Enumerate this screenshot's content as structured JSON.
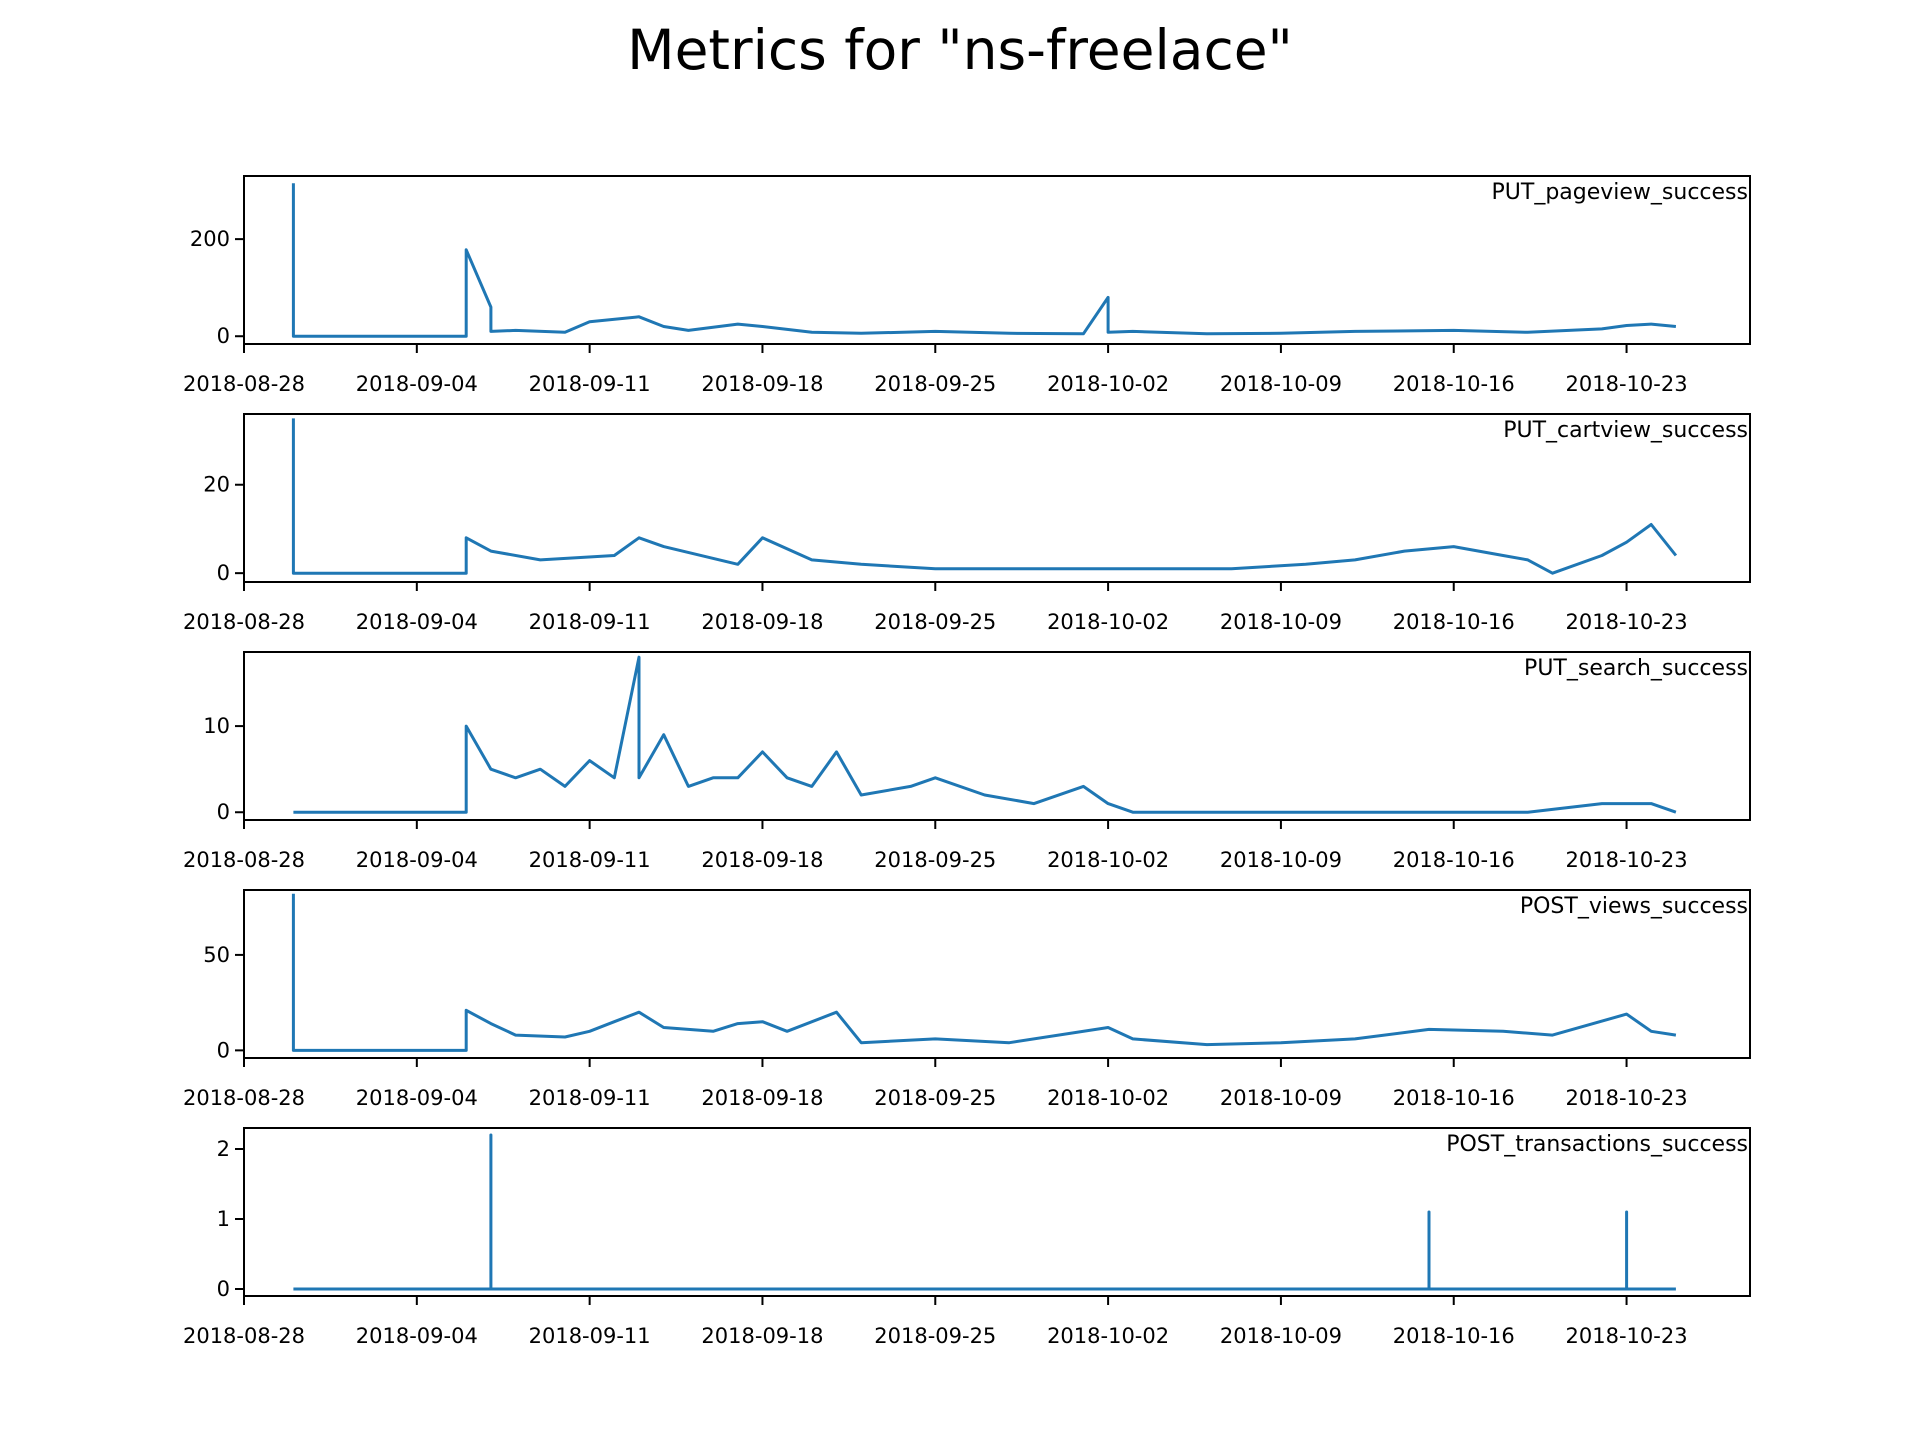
{
  "figure": {
    "title": "Metrics for \"ns-freelace\"",
    "line_color": "#1f77b4"
  },
  "chart_data": [
    {
      "type": "line",
      "title": "PUT_pageview_success",
      "xlabel": "",
      "ylabel": "",
      "x_ticks": [
        "2018-08-28",
        "2018-09-04",
        "2018-09-11",
        "2018-09-18",
        "2018-09-25",
        "2018-10-02",
        "2018-10-09",
        "2018-10-16",
        "2018-10-23"
      ],
      "y_ticks": [
        0,
        200
      ],
      "xlim": [
        "2018-08-28",
        "2018-10-28"
      ],
      "ylim": [
        -16,
        330
      ],
      "series": [
        {
          "x": [
            "2018-08-30",
            "2018-08-30",
            "2018-09-06",
            "2018-09-06",
            "2018-09-07",
            "2018-09-07",
            "2018-09-08",
            "2018-09-10",
            "2018-09-11",
            "2018-09-13",
            "2018-09-14",
            "2018-09-15",
            "2018-09-17",
            "2018-09-18",
            "2018-09-20",
            "2018-09-22",
            "2018-09-25",
            "2018-09-28",
            "2018-10-01",
            "2018-10-02",
            "2018-10-02",
            "2018-10-03",
            "2018-10-06",
            "2018-10-09",
            "2018-10-12",
            "2018-10-16",
            "2018-10-19",
            "2018-10-22",
            "2018-10-23",
            "2018-10-24",
            "2018-10-25"
          ],
          "y": [
            315,
            0,
            0,
            178,
            60,
            10,
            12,
            8,
            30,
            40,
            20,
            12,
            25,
            20,
            8,
            6,
            10,
            6,
            5,
            80,
            8,
            10,
            5,
            6,
            10,
            12,
            8,
            15,
            22,
            25,
            20
          ]
        }
      ]
    },
    {
      "type": "line",
      "title": "PUT_cartview_success",
      "xlabel": "",
      "ylabel": "",
      "x_ticks": [
        "2018-08-28",
        "2018-09-04",
        "2018-09-11",
        "2018-09-18",
        "2018-09-25",
        "2018-10-02",
        "2018-10-09",
        "2018-10-16",
        "2018-10-23"
      ],
      "y_ticks": [
        0,
        20
      ],
      "xlim": [
        "2018-08-28",
        "2018-10-28"
      ],
      "ylim": [
        -2,
        36
      ],
      "series": [
        {
          "x": [
            "2018-08-30",
            "2018-08-30",
            "2018-09-06",
            "2018-09-06",
            "2018-09-07",
            "2018-09-09",
            "2018-09-12",
            "2018-09-13",
            "2018-09-14",
            "2018-09-17",
            "2018-09-18",
            "2018-09-20",
            "2018-09-22",
            "2018-09-25",
            "2018-09-30",
            "2018-10-03",
            "2018-10-07",
            "2018-10-10",
            "2018-10-12",
            "2018-10-14",
            "2018-10-16",
            "2018-10-18",
            "2018-10-19",
            "2018-10-20",
            "2018-10-22",
            "2018-10-23",
            "2018-10-24",
            "2018-10-25"
          ],
          "y": [
            35,
            0,
            0,
            8,
            5,
            3,
            4,
            8,
            6,
            2,
            8,
            3,
            2,
            1,
            1,
            1,
            1,
            2,
            3,
            5,
            6,
            4,
            3,
            0,
            4,
            7,
            11,
            4
          ]
        }
      ]
    },
    {
      "type": "line",
      "title": "PUT_search_success",
      "xlabel": "",
      "ylabel": "",
      "x_ticks": [
        "2018-08-28",
        "2018-09-04",
        "2018-09-11",
        "2018-09-18",
        "2018-09-25",
        "2018-10-02",
        "2018-10-09",
        "2018-10-16",
        "2018-10-23"
      ],
      "y_ticks": [
        0,
        10
      ],
      "xlim": [
        "2018-08-28",
        "2018-10-28"
      ],
      "ylim": [
        -0.9,
        18.6
      ],
      "series": [
        {
          "x": [
            "2018-08-30",
            "2018-09-06",
            "2018-09-06",
            "2018-09-07",
            "2018-09-08",
            "2018-09-09",
            "2018-09-10",
            "2018-09-11",
            "2018-09-12",
            "2018-09-13",
            "2018-09-13",
            "2018-09-14",
            "2018-09-15",
            "2018-09-16",
            "2018-09-17",
            "2018-09-18",
            "2018-09-19",
            "2018-09-20",
            "2018-09-21",
            "2018-09-22",
            "2018-09-24",
            "2018-09-25",
            "2018-09-27",
            "2018-09-29",
            "2018-10-01",
            "2018-10-02",
            "2018-10-03",
            "2018-10-10",
            "2018-10-19",
            "2018-10-22",
            "2018-10-24",
            "2018-10-25"
          ],
          "y": [
            0,
            0,
            10,
            5,
            4,
            5,
            3,
            6,
            4,
            18,
            4,
            9,
            3,
            4,
            4,
            7,
            4,
            3,
            7,
            2,
            3,
            4,
            2,
            1,
            3,
            1,
            0,
            0,
            0,
            1,
            1,
            0
          ]
        }
      ]
    },
    {
      "type": "line",
      "title": "POST_views_success",
      "xlabel": "",
      "ylabel": "",
      "x_ticks": [
        "2018-08-28",
        "2018-09-04",
        "2018-09-11",
        "2018-09-18",
        "2018-09-25",
        "2018-10-02",
        "2018-10-09",
        "2018-10-16",
        "2018-10-23"
      ],
      "y_ticks": [
        0,
        50
      ],
      "xlim": [
        "2018-08-28",
        "2018-10-28"
      ],
      "ylim": [
        -4,
        84
      ],
      "series": [
        {
          "x": [
            "2018-08-30",
            "2018-08-30",
            "2018-09-06",
            "2018-09-06",
            "2018-09-07",
            "2018-09-08",
            "2018-09-10",
            "2018-09-11",
            "2018-09-12",
            "2018-09-13",
            "2018-09-14",
            "2018-09-16",
            "2018-09-17",
            "2018-09-18",
            "2018-09-19",
            "2018-09-21",
            "2018-09-22",
            "2018-09-25",
            "2018-09-28",
            "2018-10-02",
            "2018-10-03",
            "2018-10-06",
            "2018-10-09",
            "2018-10-12",
            "2018-10-15",
            "2018-10-18",
            "2018-10-20",
            "2018-10-23",
            "2018-10-24",
            "2018-10-25"
          ],
          "y": [
            82,
            0,
            0,
            21,
            14,
            8,
            7,
            10,
            15,
            20,
            12,
            10,
            14,
            15,
            10,
            20,
            4,
            6,
            4,
            12,
            6,
            3,
            4,
            6,
            11,
            10,
            8,
            19,
            10,
            8
          ]
        }
      ]
    },
    {
      "type": "line",
      "title": "POST_transactions_success",
      "xlabel": "",
      "ylabel": "",
      "x_ticks": [
        "2018-08-28",
        "2018-09-04",
        "2018-09-11",
        "2018-09-18",
        "2018-09-25",
        "2018-10-02",
        "2018-10-09",
        "2018-10-16",
        "2018-10-23"
      ],
      "y_ticks": [
        0,
        1,
        2
      ],
      "xlim": [
        "2018-08-28",
        "2018-10-28"
      ],
      "ylim": [
        -0.1,
        2.3
      ],
      "series": [
        {
          "x": [
            "2018-08-30",
            "2018-09-07",
            "2018-09-07",
            "2018-09-07",
            "2018-10-15",
            "2018-10-15",
            "2018-10-15",
            "2018-10-23",
            "2018-10-23",
            "2018-10-23",
            "2018-10-25"
          ],
          "y": [
            0,
            0,
            2.2,
            0,
            0,
            1.1,
            0,
            0,
            1.1,
            0,
            0
          ]
        }
      ]
    }
  ]
}
